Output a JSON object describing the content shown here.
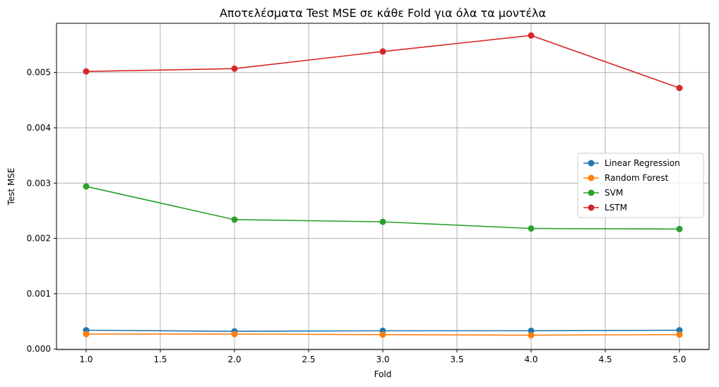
{
  "chart_data": {
    "type": "line",
    "title": "Αποτελέσματα Test MSE σε κάθε Fold για όλα τα μοντέλα",
    "xlabel": "Fold",
    "ylabel": "Test MSE",
    "xlim": [
      0.8,
      5.2
    ],
    "ylim": [
      -1e-05,
      0.00589
    ],
    "x_ticks": [
      1.0,
      1.5,
      2.0,
      2.5,
      3.0,
      3.5,
      4.0,
      4.5,
      5.0
    ],
    "x_tick_labels": [
      "1.0",
      "1.5",
      "2.0",
      "2.5",
      "3.0",
      "3.5",
      "4.0",
      "4.5",
      "5.0"
    ],
    "y_ticks": [
      0.0,
      0.001,
      0.002,
      0.003,
      0.004,
      0.005
    ],
    "y_tick_labels": [
      "0.000",
      "0.001",
      "0.002",
      "0.003",
      "0.004",
      "0.005"
    ],
    "grid": true,
    "legend_position": "center-right",
    "x": [
      1,
      2,
      3,
      4,
      5
    ],
    "series": [
      {
        "name": "Linear Regression",
        "color": "#1f77b4",
        "values": [
          0.00034,
          0.00032,
          0.00033,
          0.00033,
          0.00034
        ]
      },
      {
        "name": "Random Forest",
        "color": "#ff7f0e",
        "values": [
          0.00027,
          0.00027,
          0.00026,
          0.00025,
          0.00026
        ]
      },
      {
        "name": "SVM",
        "color": "#2ca02c",
        "values": [
          0.00294,
          0.00234,
          0.0023,
          0.00218,
          0.00217
        ]
      },
      {
        "name": "LSTM",
        "color": "#d62728",
        "values": [
          0.00502,
          0.00507,
          0.00538,
          0.00567,
          0.00472
        ]
      }
    ]
  }
}
